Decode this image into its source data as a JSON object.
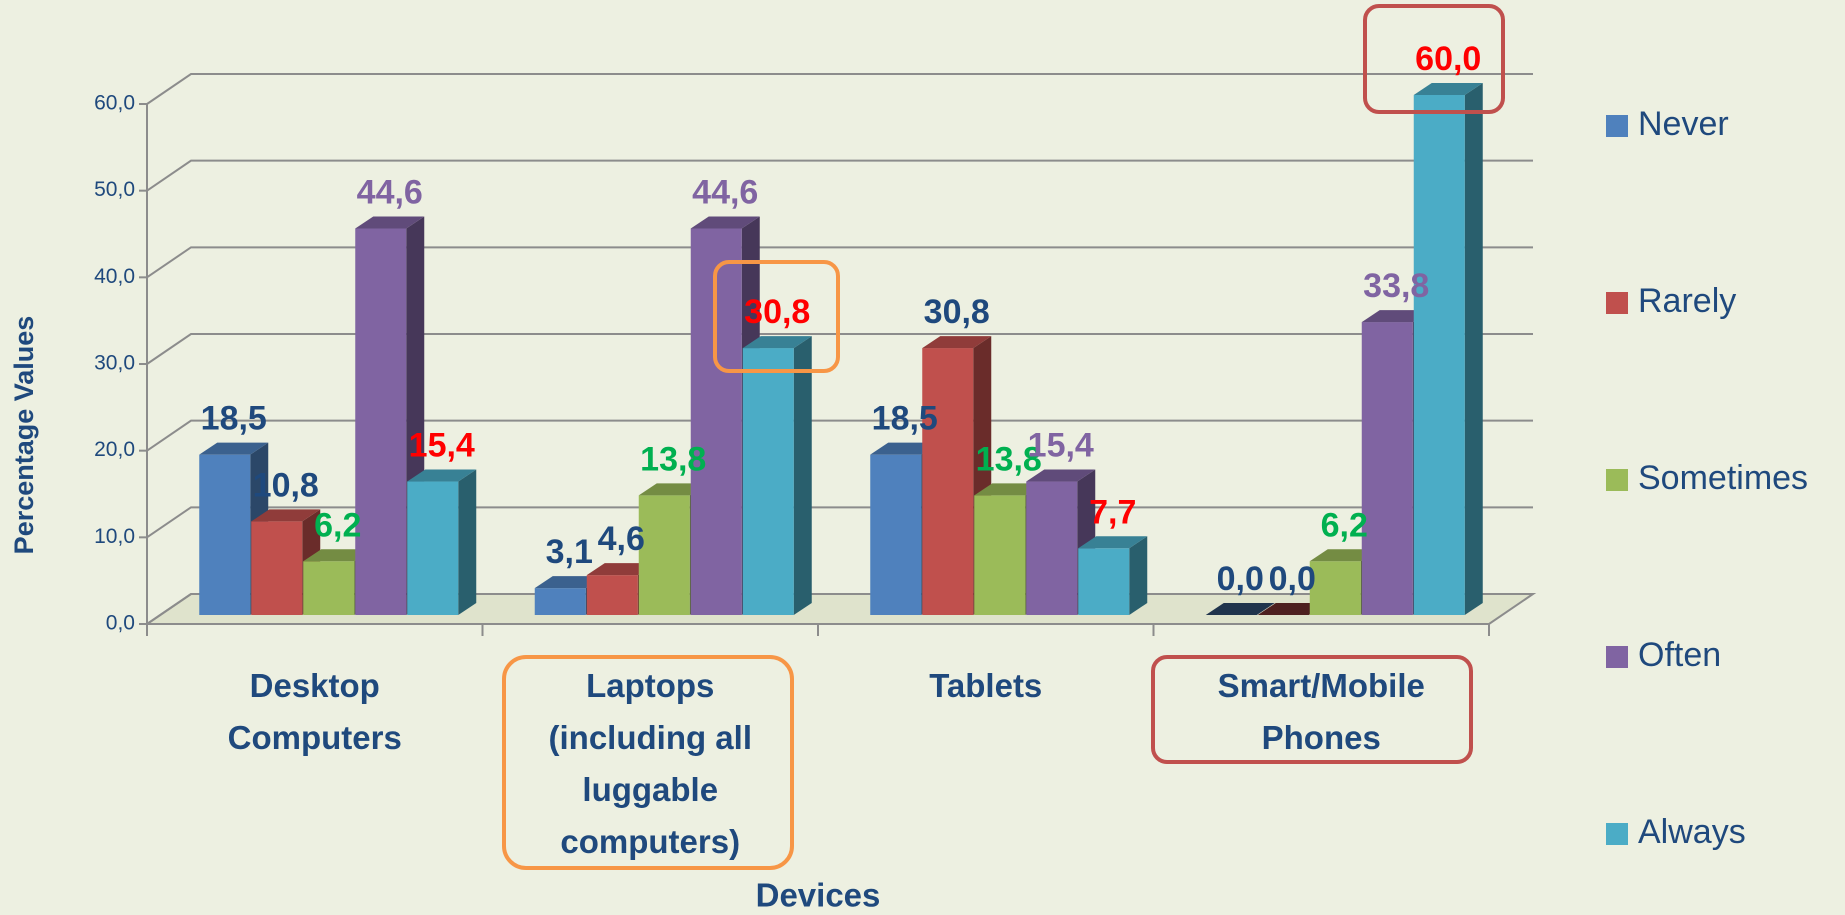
{
  "chart_data": {
    "type": "bar3d",
    "x_label": "Devices",
    "y_label": "Percentage Values",
    "categories": [
      "Desktop Computers",
      "Laptops (including all luggable computers)",
      "Tablets",
      "Smart/Mobile Phones"
    ],
    "series": [
      {
        "name": "Never",
        "color": "#4f81bd",
        "label_color": "#1f497d",
        "values": [
          18.5,
          3.1,
          18.5,
          0.0
        ],
        "value_labels": [
          "18,5",
          "3,1",
          "18,5",
          "0,0"
        ]
      },
      {
        "name": "Rarely",
        "color": "#c0504d",
        "label_color": "#1f497d",
        "values": [
          10.8,
          4.6,
          30.8,
          0.0
        ],
        "value_labels": [
          "10,8",
          "4,6",
          "30,8",
          "0,0"
        ]
      },
      {
        "name": "Sometimes",
        "color": "#9bbb59",
        "label_color": "#00b050",
        "values": [
          6.2,
          13.8,
          13.8,
          6.2
        ],
        "value_labels": [
          "6,2",
          "13,8",
          "13,8",
          "6,2"
        ]
      },
      {
        "name": "Often",
        "color": "#8064a2",
        "label_color": "#8064a2",
        "values": [
          44.6,
          44.6,
          15.4,
          33.8
        ],
        "value_labels": [
          "44,6",
          "44,6",
          "15,4",
          "33,8"
        ]
      },
      {
        "name": "Always",
        "color": "#4bacc6",
        "label_color": "#ff0000",
        "values": [
          15.4,
          30.8,
          7.7,
          60.0
        ],
        "value_labels": [
          "15,4",
          "30,8",
          "7,7",
          "60,0"
        ]
      }
    ],
    "ylim": [
      0,
      60
    ],
    "yticks": [
      {
        "value": 0,
        "label": "0,0"
      },
      {
        "value": 10,
        "label": "10,0"
      },
      {
        "value": 20,
        "label": "20,0"
      },
      {
        "value": 30,
        "label": "30,0"
      },
      {
        "value": 40,
        "label": "40,0"
      },
      {
        "value": 50,
        "label": "50,0"
      },
      {
        "value": 60,
        "label": "60,0"
      }
    ],
    "grid": true,
    "legend": "right"
  }
}
